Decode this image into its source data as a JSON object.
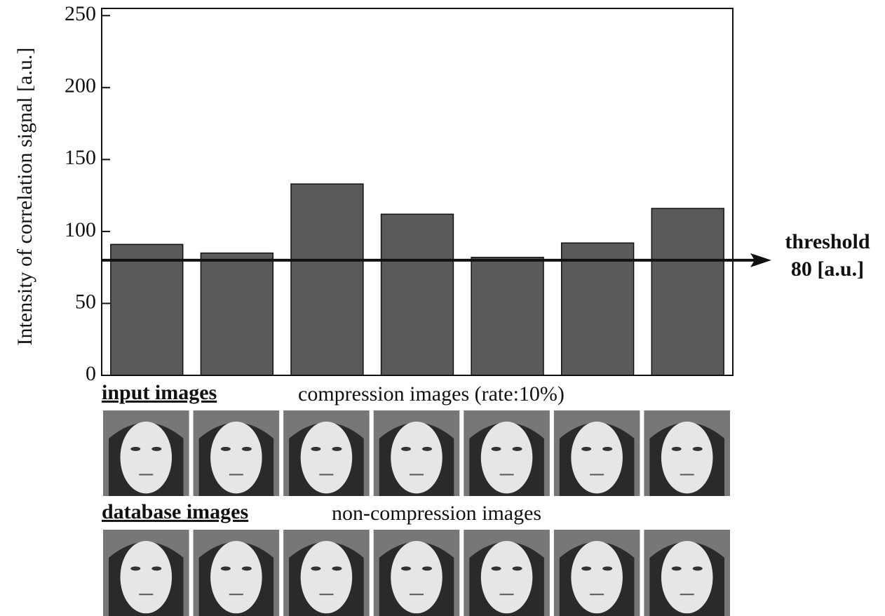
{
  "chart_data": {
    "type": "bar",
    "y_label": "Intensity of correlation signal [a.u.]",
    "categories": [
      null,
      null,
      null,
      null,
      null,
      null,
      null
    ],
    "values": [
      91,
      85,
      133,
      112,
      82,
      92,
      116
    ],
    "color": "#5a5a5a",
    "ylim": [
      0,
      255
    ],
    "yticks": [
      0,
      50,
      100,
      150,
      200,
      250
    ],
    "threshold": 80,
    "threshold_title": "threshold",
    "threshold_label": "80 [a.u.]",
    "input_title": "input images",
    "input_caption": "compression images (rate:10%)",
    "database_title": "database images",
    "database_caption": "non-compression images"
  }
}
